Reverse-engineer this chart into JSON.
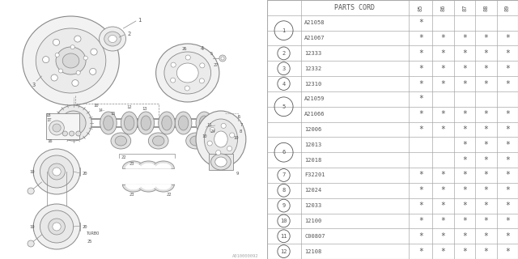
{
  "watermark": "A010000092",
  "table_header_label": "PARTS CORD",
  "year_cols": [
    "85",
    "86",
    "87",
    "88",
    "89"
  ],
  "rows": [
    {
      "num": "1",
      "parts": [
        "A21058",
        "A21067"
      ],
      "marks": [
        [
          "*",
          "",
          "",
          "",
          ""
        ],
        [
          "*",
          "*",
          "*",
          "*",
          "*"
        ]
      ]
    },
    {
      "num": "2",
      "parts": [
        "12333"
      ],
      "marks": [
        [
          "*",
          "*",
          "*",
          "*",
          "*"
        ]
      ]
    },
    {
      "num": "3",
      "parts": [
        "12332"
      ],
      "marks": [
        [
          "*",
          "*",
          "*",
          "*",
          "*"
        ]
      ]
    },
    {
      "num": "4",
      "parts": [
        "12310"
      ],
      "marks": [
        [
          "*",
          "*",
          "*",
          "*",
          "*"
        ]
      ]
    },
    {
      "num": "5",
      "parts": [
        "A21059",
        "A21066"
      ],
      "marks": [
        [
          "*",
          "",
          "",
          "",
          ""
        ],
        [
          "*",
          "*",
          "*",
          "*",
          "*"
        ]
      ]
    },
    {
      "num": "",
      "parts": [
        "12006"
      ],
      "marks": [
        [
          "*",
          "*",
          "*",
          "*",
          "*"
        ]
      ]
    },
    {
      "num": "6",
      "parts": [
        "12013",
        "12018"
      ],
      "marks": [
        [
          "",
          "",
          "*",
          "*",
          "*"
        ],
        [
          "",
          "",
          "*",
          "*",
          "*"
        ]
      ]
    },
    {
      "num": "7",
      "parts": [
        "F32201"
      ],
      "marks": [
        [
          "*",
          "*",
          "*",
          "*",
          "*"
        ]
      ]
    },
    {
      "num": "8",
      "parts": [
        "12024"
      ],
      "marks": [
        [
          "*",
          "*",
          "*",
          "*",
          "*"
        ]
      ]
    },
    {
      "num": "9",
      "parts": [
        "12033"
      ],
      "marks": [
        [
          "*",
          "*",
          "*",
          "*",
          "*"
        ]
      ]
    },
    {
      "num": "10",
      "parts": [
        "12100"
      ],
      "marks": [
        [
          "*",
          "*",
          "*",
          "*",
          "*"
        ]
      ]
    },
    {
      "num": "11",
      "parts": [
        "C00807"
      ],
      "marks": [
        [
          "*",
          "*",
          "*",
          "*",
          "*"
        ]
      ]
    },
    {
      "num": "12",
      "parts": [
        "12108"
      ],
      "marks": [
        [
          "*",
          "*",
          "*",
          "*",
          "*"
        ]
      ]
    }
  ],
  "bg_color": "#ffffff",
  "line_color": "#888888",
  "text_color": "#555555",
  "table_line_color": "#aaaaaa"
}
